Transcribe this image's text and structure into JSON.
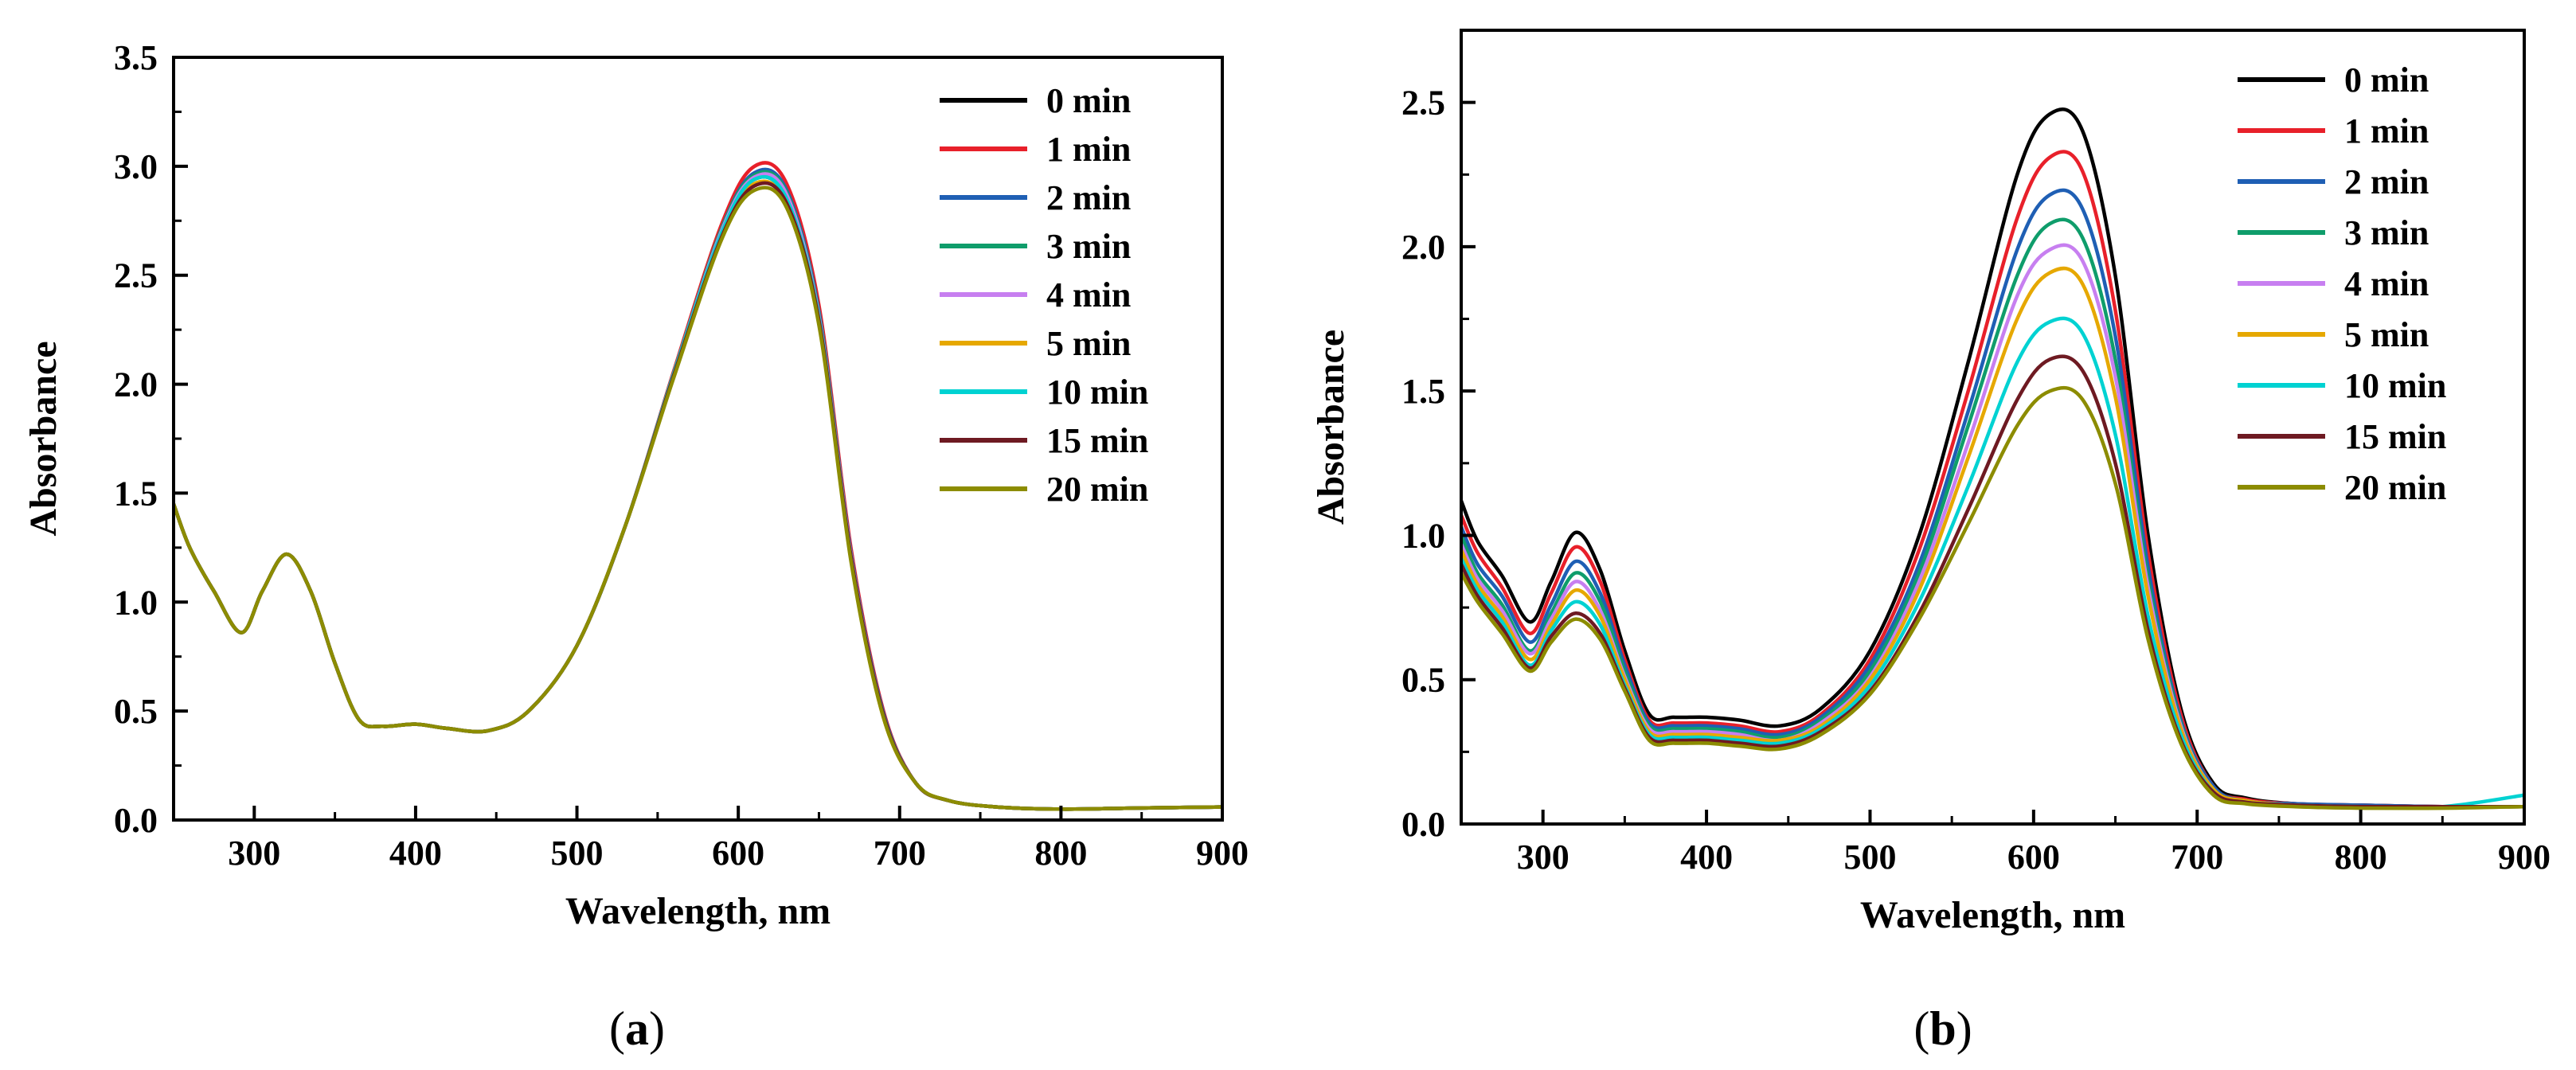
{
  "figure": {
    "panels": [
      {
        "label_open": "(",
        "label_letter": "a",
        "label_close": ")"
      },
      {
        "label_open": "(",
        "label_letter": "b",
        "label_close": ")"
      }
    ]
  },
  "chart_data": [
    {
      "type": "line",
      "title": "",
      "xlabel": "Wavelength, nm",
      "ylabel": "Absorbance",
      "xlim": [
        250,
        900
      ],
      "ylim": [
        0,
        3.5
      ],
      "xticks": [
        "300",
        "400",
        "500",
        "600",
        "700",
        "800",
        "900"
      ],
      "yticks": [
        "0.0",
        "0.5",
        "1.0",
        "1.5",
        "2.0",
        "2.5",
        "3.0",
        "3.5"
      ],
      "legend_position": "top-right",
      "grid": false,
      "x": [
        250,
        260,
        275,
        292,
        305,
        320,
        335,
        350,
        365,
        380,
        400,
        420,
        445,
        470,
        500,
        530,
        560,
        590,
        610,
        630,
        650,
        670,
        690,
        710,
        730,
        760,
        800,
        850,
        900
      ],
      "series": [
        {
          "name": "0 min",
          "color": "#000000",
          "values": [
            1.45,
            1.25,
            1.05,
            0.86,
            1.05,
            1.22,
            1.05,
            0.72,
            0.46,
            0.43,
            0.44,
            0.42,
            0.41,
            0.5,
            0.8,
            1.35,
            2.05,
            2.7,
            2.94,
            2.85,
            2.3,
            1.2,
            0.48,
            0.17,
            0.09,
            0.06,
            0.05,
            0.055,
            0.06
          ]
        },
        {
          "name": "1 min",
          "color": "#e8202a",
          "values": [
            1.45,
            1.25,
            1.05,
            0.86,
            1.05,
            1.22,
            1.05,
            0.72,
            0.46,
            0.43,
            0.44,
            0.42,
            0.41,
            0.5,
            0.8,
            1.35,
            2.06,
            2.74,
            3.0,
            2.92,
            2.36,
            1.24,
            0.5,
            0.17,
            0.09,
            0.06,
            0.05,
            0.055,
            0.06
          ]
        },
        {
          "name": "2 min",
          "color": "#1f5fb4",
          "values": [
            1.45,
            1.25,
            1.05,
            0.86,
            1.05,
            1.22,
            1.05,
            0.72,
            0.46,
            0.43,
            0.44,
            0.42,
            0.41,
            0.5,
            0.8,
            1.35,
            2.05,
            2.72,
            2.97,
            2.89,
            2.33,
            1.22,
            0.49,
            0.17,
            0.09,
            0.06,
            0.05,
            0.055,
            0.06
          ]
        },
        {
          "name": "3 min",
          "color": "#0f9d6b",
          "values": [
            1.45,
            1.25,
            1.05,
            0.86,
            1.05,
            1.22,
            1.05,
            0.72,
            0.46,
            0.43,
            0.44,
            0.42,
            0.41,
            0.5,
            0.8,
            1.35,
            2.05,
            2.72,
            2.96,
            2.88,
            2.32,
            1.21,
            0.48,
            0.17,
            0.09,
            0.06,
            0.05,
            0.055,
            0.06
          ]
        },
        {
          "name": "4 min",
          "color": "#c77ff0",
          "values": [
            1.45,
            1.25,
            1.05,
            0.86,
            1.05,
            1.22,
            1.05,
            0.72,
            0.46,
            0.43,
            0.44,
            0.42,
            0.41,
            0.5,
            0.8,
            1.35,
            2.05,
            2.71,
            2.95,
            2.87,
            2.31,
            1.21,
            0.48,
            0.17,
            0.09,
            0.06,
            0.05,
            0.055,
            0.06
          ]
        },
        {
          "name": "5 min",
          "color": "#e6a800",
          "values": [
            1.45,
            1.25,
            1.05,
            0.86,
            1.05,
            1.22,
            1.05,
            0.72,
            0.46,
            0.43,
            0.44,
            0.42,
            0.41,
            0.5,
            0.8,
            1.35,
            2.04,
            2.69,
            2.92,
            2.83,
            2.28,
            1.19,
            0.47,
            0.17,
            0.09,
            0.06,
            0.05,
            0.055,
            0.06
          ]
        },
        {
          "name": "10 min",
          "color": "#00d2d2",
          "values": [
            1.45,
            1.25,
            1.05,
            0.86,
            1.05,
            1.22,
            1.05,
            0.72,
            0.46,
            0.43,
            0.44,
            0.42,
            0.41,
            0.5,
            0.8,
            1.35,
            2.05,
            2.7,
            2.94,
            2.85,
            2.3,
            1.2,
            0.48,
            0.17,
            0.09,
            0.06,
            0.05,
            0.055,
            0.06
          ]
        },
        {
          "name": "15 min",
          "color": "#6e1a22",
          "values": [
            1.45,
            1.25,
            1.05,
            0.86,
            1.05,
            1.22,
            1.05,
            0.72,
            0.46,
            0.43,
            0.44,
            0.42,
            0.41,
            0.5,
            0.8,
            1.35,
            2.04,
            2.68,
            2.91,
            2.83,
            2.29,
            1.2,
            0.48,
            0.17,
            0.09,
            0.06,
            0.05,
            0.055,
            0.06
          ]
        },
        {
          "name": "20 min",
          "color": "#8c8c00",
          "values": [
            1.45,
            1.25,
            1.05,
            0.86,
            1.05,
            1.22,
            1.05,
            0.72,
            0.46,
            0.43,
            0.44,
            0.42,
            0.41,
            0.5,
            0.8,
            1.35,
            2.03,
            2.67,
            2.89,
            2.81,
            2.27,
            1.18,
            0.47,
            0.17,
            0.09,
            0.06,
            0.05,
            0.055,
            0.06
          ]
        }
      ]
    },
    {
      "type": "line",
      "title": "",
      "xlabel": "Wavelength, nm",
      "ylabel": "Absorbance",
      "xlim": [
        250,
        900
      ],
      "ylim": [
        0,
        2.75
      ],
      "xticks": [
        "300",
        "400",
        "500",
        "600",
        "700",
        "800",
        "900"
      ],
      "yticks": [
        "0.0",
        "0.5",
        "1.0",
        "1.5",
        "2.0",
        "2.5"
      ],
      "legend_position": "top-left",
      "grid": false,
      "x": [
        250,
        260,
        275,
        292,
        305,
        320,
        335,
        350,
        365,
        380,
        400,
        420,
        445,
        470,
        500,
        530,
        560,
        590,
        610,
        630,
        650,
        670,
        690,
        710,
        730,
        760,
        800,
        850,
        900
      ],
      "series": [
        {
          "name": "0 min",
          "color": "#000000",
          "values": [
            1.12,
            0.98,
            0.86,
            0.7,
            0.84,
            1.01,
            0.88,
            0.6,
            0.38,
            0.37,
            0.37,
            0.36,
            0.34,
            0.4,
            0.6,
            1.0,
            1.6,
            2.25,
            2.46,
            2.4,
            1.9,
            1.0,
            0.4,
            0.14,
            0.09,
            0.07,
            0.065,
            0.06,
            0.06
          ]
        },
        {
          "name": "1 min",
          "color": "#e8202a",
          "values": [
            1.07,
            0.94,
            0.82,
            0.66,
            0.8,
            0.96,
            0.84,
            0.57,
            0.36,
            0.35,
            0.35,
            0.34,
            0.32,
            0.38,
            0.57,
            0.95,
            1.5,
            2.1,
            2.31,
            2.26,
            1.78,
            0.94,
            0.38,
            0.13,
            0.085,
            0.07,
            0.065,
            0.06,
            0.06
          ]
        },
        {
          "name": "2 min",
          "color": "#1f5fb4",
          "values": [
            1.03,
            0.9,
            0.79,
            0.63,
            0.76,
            0.91,
            0.8,
            0.55,
            0.35,
            0.34,
            0.34,
            0.33,
            0.31,
            0.37,
            0.55,
            0.9,
            1.43,
            1.99,
            2.18,
            2.13,
            1.69,
            0.89,
            0.36,
            0.13,
            0.08,
            0.07,
            0.065,
            0.06,
            0.06
          ]
        },
        {
          "name": "3 min",
          "color": "#0f9d6b",
          "values": [
            1.0,
            0.87,
            0.76,
            0.6,
            0.73,
            0.87,
            0.77,
            0.53,
            0.34,
            0.33,
            0.33,
            0.32,
            0.3,
            0.36,
            0.53,
            0.87,
            1.38,
            1.9,
            2.08,
            2.03,
            1.61,
            0.85,
            0.35,
            0.12,
            0.08,
            0.065,
            0.06,
            0.06,
            0.06
          ]
        },
        {
          "name": "4 min",
          "color": "#c77ff0",
          "values": [
            0.97,
            0.85,
            0.74,
            0.59,
            0.71,
            0.84,
            0.74,
            0.51,
            0.33,
            0.32,
            0.32,
            0.31,
            0.29,
            0.35,
            0.51,
            0.84,
            1.32,
            1.83,
            1.99,
            1.95,
            1.55,
            0.82,
            0.34,
            0.12,
            0.08,
            0.065,
            0.06,
            0.06,
            0.06
          ]
        },
        {
          "name": "5 min",
          "color": "#e6a800",
          "values": [
            0.95,
            0.83,
            0.72,
            0.57,
            0.69,
            0.81,
            0.72,
            0.5,
            0.32,
            0.31,
            0.31,
            0.3,
            0.29,
            0.34,
            0.5,
            0.81,
            1.27,
            1.75,
            1.91,
            1.87,
            1.48,
            0.79,
            0.33,
            0.12,
            0.08,
            0.065,
            0.06,
            0.06,
            0.06
          ]
        },
        {
          "name": "10 min",
          "color": "#00d2d2",
          "values": [
            0.92,
            0.81,
            0.7,
            0.55,
            0.67,
            0.77,
            0.69,
            0.48,
            0.31,
            0.3,
            0.3,
            0.29,
            0.28,
            0.33,
            0.48,
            0.77,
            1.17,
            1.6,
            1.74,
            1.7,
            1.35,
            0.72,
            0.31,
            0.11,
            0.075,
            0.065,
            0.06,
            0.06,
            0.1
          ]
        },
        {
          "name": "15 min",
          "color": "#6e1a22",
          "values": [
            0.9,
            0.79,
            0.68,
            0.54,
            0.65,
            0.73,
            0.66,
            0.47,
            0.3,
            0.29,
            0.29,
            0.28,
            0.27,
            0.32,
            0.46,
            0.73,
            1.09,
            1.47,
            1.61,
            1.57,
            1.25,
            0.67,
            0.29,
            0.11,
            0.075,
            0.065,
            0.06,
            0.06,
            0.06
          ]
        },
        {
          "name": "20 min",
          "color": "#8c8c00",
          "values": [
            0.87,
            0.77,
            0.66,
            0.53,
            0.63,
            0.71,
            0.64,
            0.46,
            0.29,
            0.28,
            0.28,
            0.27,
            0.26,
            0.31,
            0.45,
            0.71,
            1.04,
            1.38,
            1.5,
            1.47,
            1.18,
            0.64,
            0.28,
            0.1,
            0.07,
            0.06,
            0.055,
            0.055,
            0.06
          ]
        }
      ]
    }
  ]
}
